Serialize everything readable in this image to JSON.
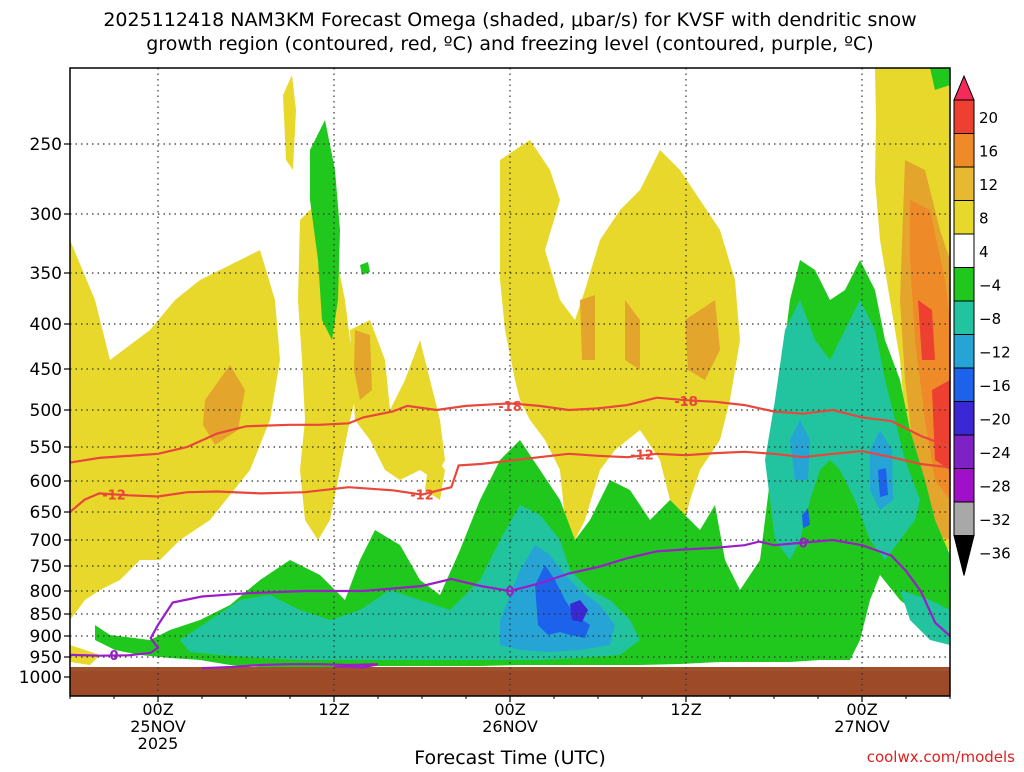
{
  "title_line1": "2025112418 NAM3KM Forecast Omega (shaded, μbar/s) for KVSF with dendritic snow",
  "title_line2": "growth region (contoured, red, ºC) and freezing level (contoured, purple, ºC)",
  "watermark": "coolwx.com/models",
  "chart_data": {
    "type": "heatmap",
    "xlabel": "Forecast Time (UTC)",
    "ylabel": "",
    "x_range_hours": [
      -6,
      54
    ],
    "y_range_hpa": [
      1025,
      200
    ],
    "x_ticks": [
      {
        "hour": 0,
        "lines": [
          "00Z",
          "25NOV",
          "2025"
        ]
      },
      {
        "hour": 12,
        "lines": [
          "12Z"
        ]
      },
      {
        "hour": 24,
        "lines": [
          "00Z",
          "26NOV"
        ]
      },
      {
        "hour": 36,
        "lines": [
          "12Z"
        ]
      },
      {
        "hour": 48,
        "lines": [
          "00Z",
          "27NOV"
        ]
      }
    ],
    "y_ticks": [
      250,
      300,
      350,
      400,
      450,
      500,
      550,
      600,
      650,
      700,
      750,
      800,
      850,
      900,
      950,
      1000
    ],
    "colorbar": {
      "labels": [
        "20",
        "16",
        "12",
        "8",
        "4",
        "−4",
        "−8",
        "−12",
        "−16",
        "−20",
        "−24",
        "−28",
        "−32",
        "−36"
      ],
      "colors": [
        "#f42a5a",
        "#ee4030",
        "#ef8a28",
        "#e7b832",
        "#e8d82c",
        "#ffffff",
        "#20c81e",
        "#22c4a0",
        "#26a4d6",
        "#1c62ea",
        "#3a28d4",
        "#7e22c6",
        "#a010c8",
        "#a8a8a8",
        "#000000"
      ]
    },
    "temperature_contours": [
      {
        "label": "-18",
        "color": "#e8473b",
        "points": [
          [
            -6,
            573
          ],
          [
            -4,
            566
          ],
          [
            0,
            560
          ],
          [
            2,
            550
          ],
          [
            4,
            532
          ],
          [
            6,
            522
          ],
          [
            9,
            520
          ],
          [
            11,
            520
          ],
          [
            13,
            518
          ],
          [
            14,
            510
          ],
          [
            16,
            502
          ],
          [
            17,
            495
          ],
          [
            19,
            500
          ],
          [
            21,
            495
          ],
          [
            24,
            492
          ],
          [
            26,
            495
          ],
          [
            28,
            500
          ],
          [
            30,
            498
          ],
          [
            32,
            494
          ],
          [
            34,
            485
          ],
          [
            36,
            488
          ],
          [
            38,
            490
          ],
          [
            40,
            494
          ],
          [
            42,
            502
          ],
          [
            44,
            505
          ],
          [
            46,
            500
          ],
          [
            48,
            510
          ],
          [
            50,
            515
          ],
          [
            52,
            535
          ],
          [
            54,
            550
          ]
        ],
        "label_at": [
          24,
          495
        ]
      },
      {
        "label": "-12",
        "color": "#e8473b",
        "points": [
          [
            -6,
            650
          ],
          [
            -5,
            630
          ],
          [
            -4,
            620
          ],
          [
            -2,
            623
          ],
          [
            0,
            625
          ],
          [
            2,
            618
          ],
          [
            4,
            617
          ],
          [
            7,
            620
          ],
          [
            10,
            618
          ],
          [
            13,
            610
          ],
          [
            16,
            615
          ],
          [
            18,
            622
          ],
          [
            20,
            610
          ],
          [
            20.5,
            577
          ],
          [
            22,
            575
          ],
          [
            24,
            570
          ],
          [
            26,
            565
          ],
          [
            28,
            560
          ],
          [
            30,
            563
          ],
          [
            32,
            565
          ],
          [
            34,
            560
          ],
          [
            36,
            562
          ],
          [
            38,
            559
          ],
          [
            40,
            557
          ],
          [
            42,
            560
          ],
          [
            44,
            565
          ],
          [
            46,
            560
          ],
          [
            48,
            556
          ],
          [
            50,
            565
          ],
          [
            52,
            575
          ],
          [
            54,
            580
          ]
        ],
        "label_at": [
          -3,
          622
        ]
      },
      {
        "label": "0",
        "color": "#9a1ec6",
        "points": [
          [
            -6,
            945
          ],
          [
            -4,
            947
          ],
          [
            -2,
            946
          ],
          [
            -0.5,
            940
          ],
          [
            0,
            928
          ],
          [
            -0.5,
            905
          ],
          [
            0,
            875
          ],
          [
            1,
            825
          ],
          [
            3,
            812
          ],
          [
            6,
            805
          ],
          [
            10,
            800
          ],
          [
            14,
            800
          ],
          [
            18,
            790
          ],
          [
            20,
            776
          ],
          [
            22,
            790
          ],
          [
            24,
            800
          ],
          [
            26,
            785
          ],
          [
            28,
            765
          ],
          [
            30,
            752
          ],
          [
            32,
            735
          ],
          [
            34,
            722
          ],
          [
            36,
            718
          ],
          [
            38,
            715
          ],
          [
            40,
            710
          ],
          [
            41,
            703
          ],
          [
            42,
            710
          ],
          [
            44,
            705
          ],
          [
            46,
            700
          ],
          [
            48,
            710
          ],
          [
            50,
            730
          ],
          [
            51,
            760
          ],
          [
            52,
            800
          ],
          [
            53,
            870
          ],
          [
            54,
            900
          ]
        ],
        "label_at": [
          -3,
          945
        ]
      },
      {
        "label": "",
        "color": "#9a1ec6",
        "points": [
          [
            3,
            978
          ],
          [
            5,
            975
          ],
          [
            7,
            970
          ],
          [
            9,
            968
          ],
          [
            11,
            968
          ],
          [
            13,
            970
          ],
          [
            15,
            968
          ],
          [
            14,
            976
          ],
          [
            12,
            973
          ]
        ]
      }
    ],
    "omega_regions_note": "Warm (positive) shading aloft 250-600 hPa; green/teal/blue negative omega in low levels 650-950 hPa, strongest near 26NOV 02-05Z around 800-850 hPa; warm orange/red near 27NOV 04-06Z aloft."
  }
}
